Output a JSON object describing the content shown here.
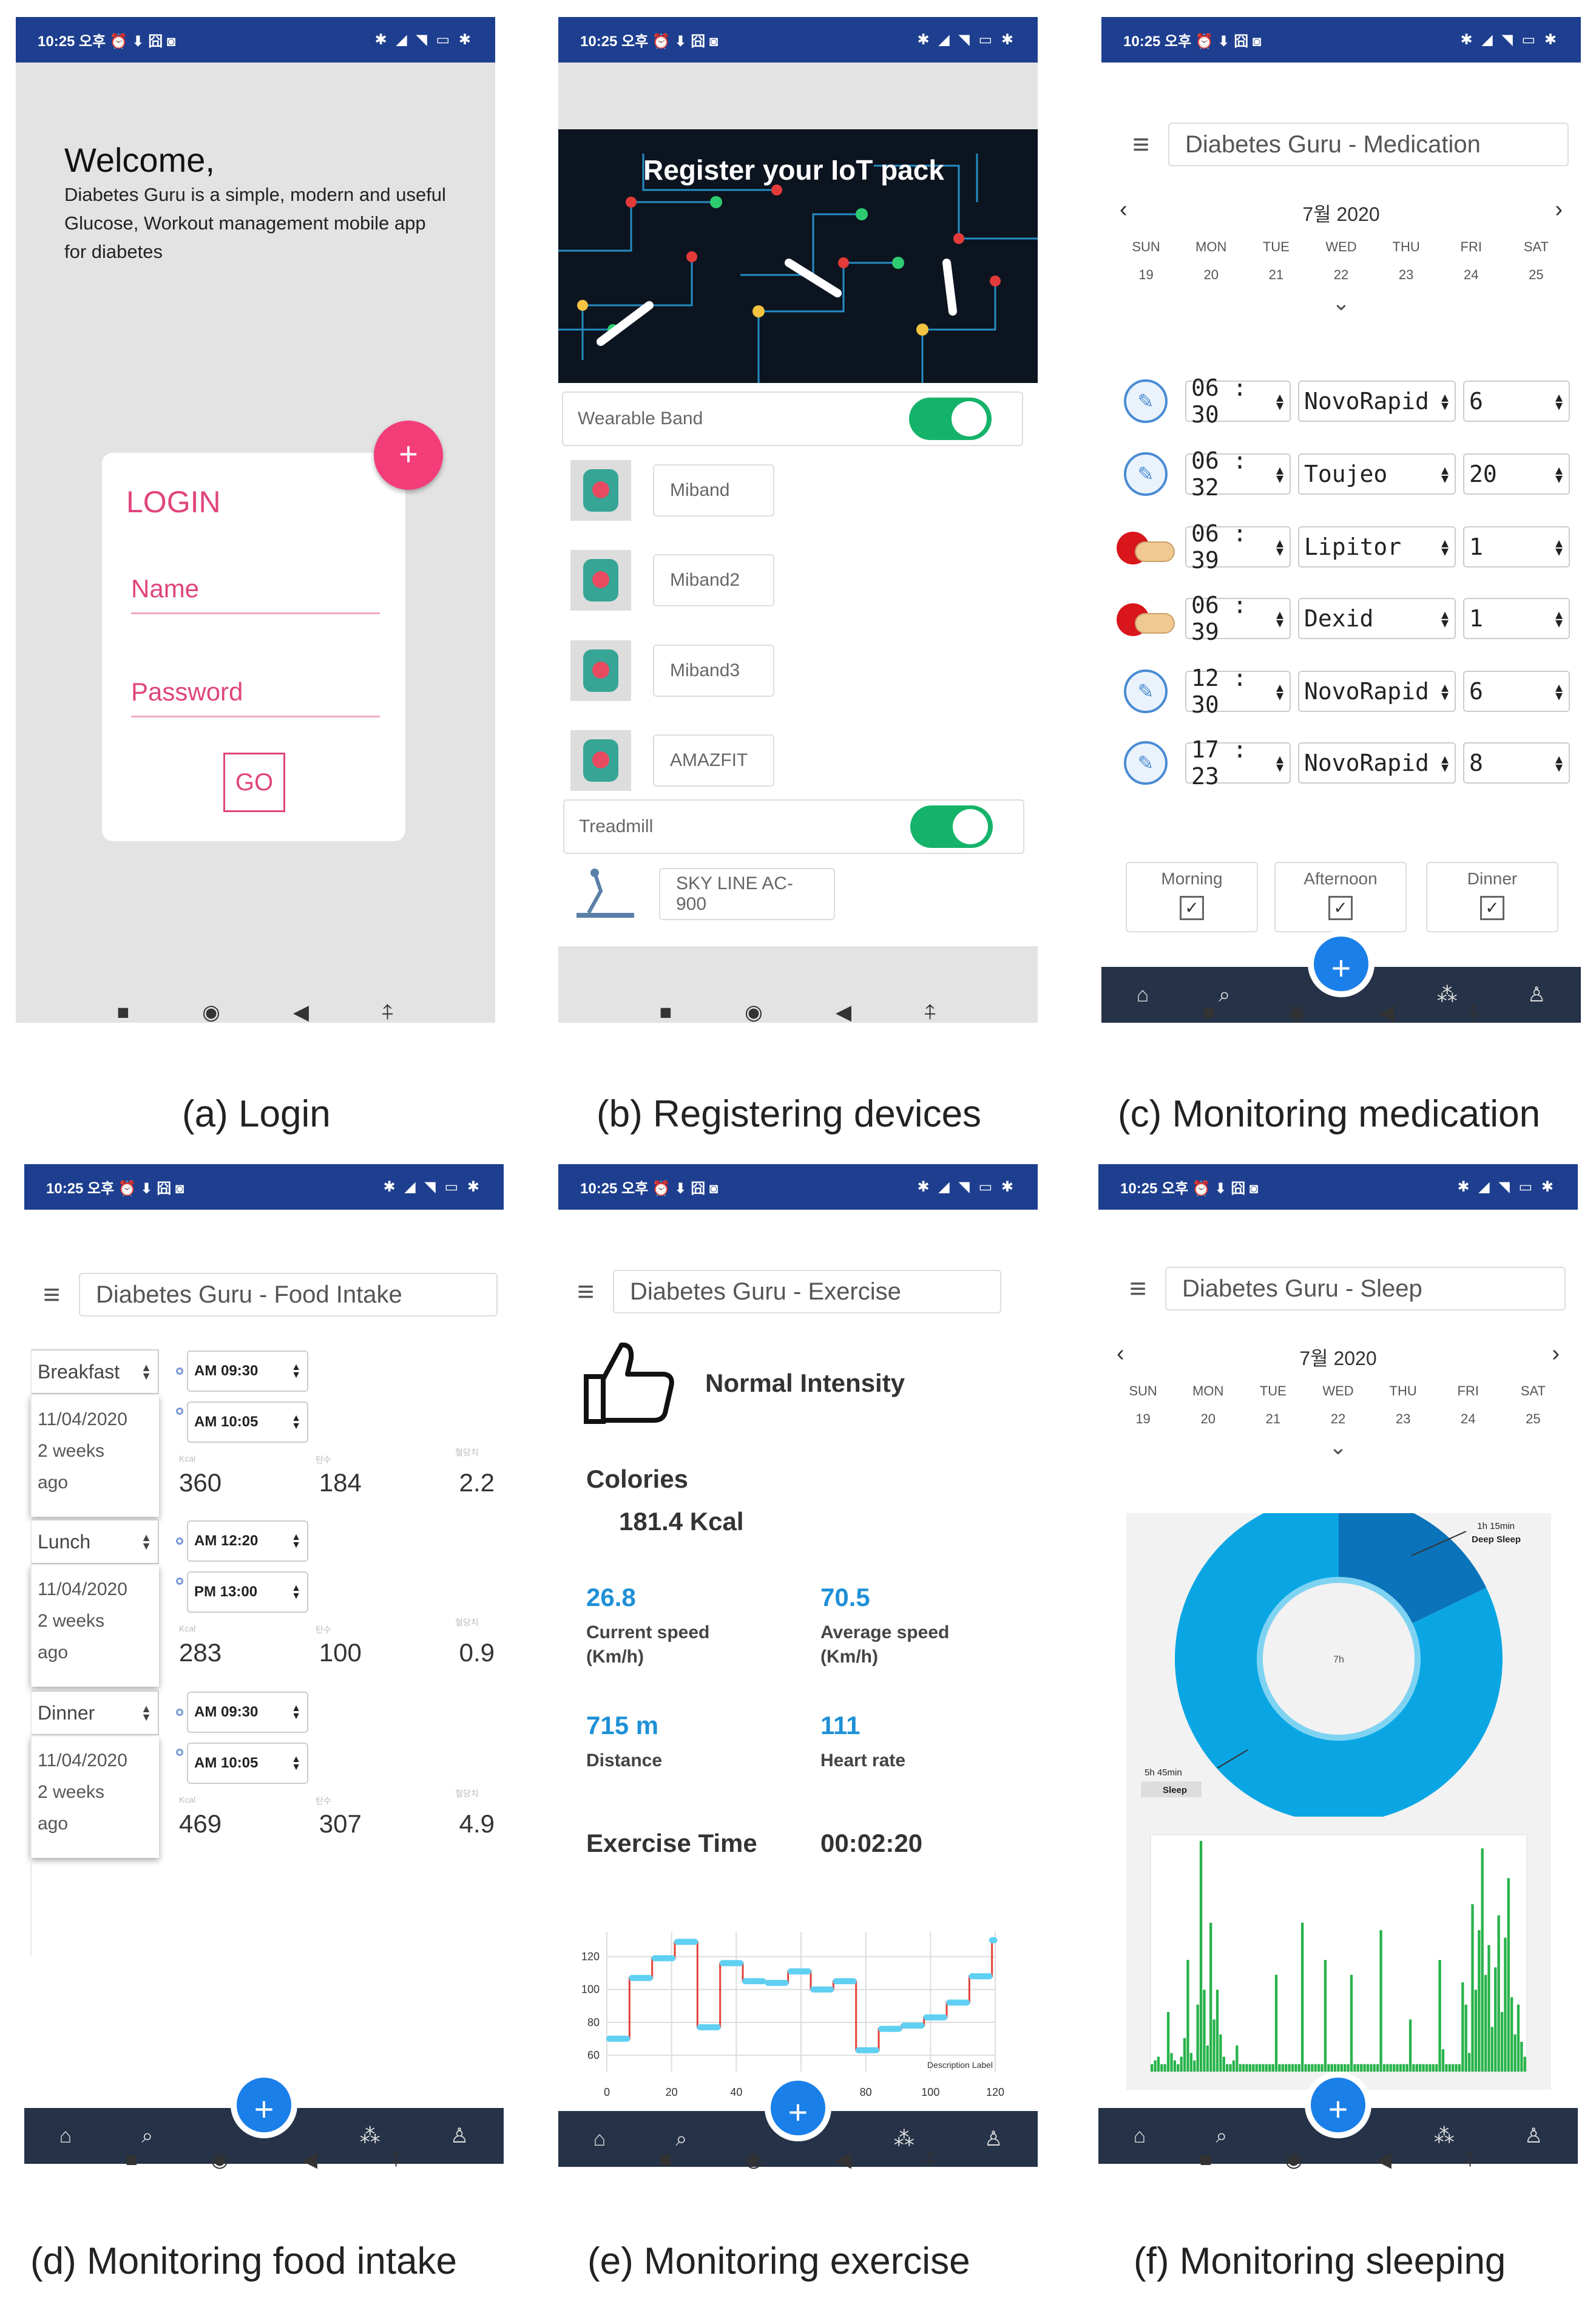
{
  "status": {
    "time": "10:25 오후 ⏰ ⬇ 囧 ◙",
    "right": "✱ ◢ ◥ ▭ ✱"
  },
  "nav": {
    "recent": "■",
    "home": "◉",
    "back": "◀",
    "assist": "⍏"
  },
  "bottom_nav": {
    "home": "⌂",
    "search": "⌕",
    "add": "+",
    "shuffle": "⁂",
    "profile": "♙"
  },
  "captions": {
    "a": "(a) Login",
    "b": "(b) Registering devices",
    "c": "(c) Monitoring medication",
    "d": "(d) Monitoring food intake",
    "e": "(e) Monitoring exercise",
    "f": "(f) Monitoring sleeping"
  },
  "login": {
    "welcome": "Welcome,",
    "desc1": "Diabetes Guru is a simple, modern and useful",
    "desc2": "Glucose, Workout management mobile app",
    "desc3": "for diabetes",
    "fab": "+",
    "card_title": "LOGIN",
    "name_label": "Name",
    "password_label": "Password",
    "go": "GO"
  },
  "devices": {
    "banner": "Register your IoT pack",
    "wearable_header": "Wearable Band",
    "bands": [
      "Miband",
      "Miband2",
      "Miband3",
      "AMAZFIT"
    ],
    "treadmill_header": "Treadmill",
    "treadmill": "SKY LINE AC-900"
  },
  "medication": {
    "title": "Diabetes Guru - Medication",
    "calendar": {
      "month": "7월 2020",
      "prev": "‹",
      "next": "›",
      "days": [
        "SUN",
        "MON",
        "TUE",
        "WED",
        "THU",
        "FRI",
        "SAT"
      ],
      "dates": [
        "19",
        "20",
        "21",
        "22",
        "23",
        "24",
        "25"
      ],
      "expand": "⌄"
    },
    "rows": [
      {
        "icon": "pen",
        "time": "06 : 30",
        "drug": "NovoRapid",
        "dose": "6"
      },
      {
        "icon": "pen",
        "time": "06 : 32",
        "drug": "Toujeo",
        "dose": "20"
      },
      {
        "icon": "pill",
        "time": "06 : 39",
        "drug": "Lipitor",
        "dose": "1"
      },
      {
        "icon": "pill",
        "time": "06 : 39",
        "drug": "Dexid",
        "dose": "1"
      },
      {
        "icon": "pen",
        "time": "12 : 30",
        "drug": "NovoRapid",
        "dose": "6"
      },
      {
        "icon": "pen",
        "time": "17 : 23",
        "drug": "NovoRapid",
        "dose": "8"
      }
    ],
    "checks": [
      {
        "label": "Morning",
        "checked": "✓"
      },
      {
        "label": "Afternoon",
        "checked": "✓"
      },
      {
        "label": "Dinner",
        "checked": "✓"
      }
    ]
  },
  "food": {
    "title": "Diabetes Guru - Food Intake",
    "col_small": [
      "Kcal",
      "탄수",
      "혈당치"
    ],
    "meals": [
      {
        "meal": "Breakfast",
        "date": "11/04/2020",
        "ago1": "2 weeks",
        "ago2": "ago",
        "t1": "AM 09:30",
        "t2": "AM 10:05",
        "kcal": "360",
        "b": "184",
        "c": "2.2"
      },
      {
        "meal": "Lunch",
        "date": "11/04/2020",
        "ago1": "2 weeks",
        "ago2": "ago",
        "t1": "AM 12:20",
        "t2": "PM 13:00",
        "kcal": "283",
        "b": "100",
        "c": "0.9"
      },
      {
        "meal": "Dinner",
        "date": "11/04/2020",
        "ago1": "2 weeks",
        "ago2": "ago",
        "t1": "AM 09:30",
        "t2": "AM 10:05",
        "kcal": "469",
        "b": "307",
        "c": "4.9"
      }
    ]
  },
  "exercise": {
    "title": "Diabetes Guru - Exercise",
    "intensity": "Normal Intensity",
    "calories_label": "Colories",
    "calories_value": "181.4 Kcal",
    "current_speed": "26.8",
    "current_speed_label1": "Current speed",
    "current_speed_label2": "(Km/h)",
    "average_speed": "70.5",
    "average_speed_label1": "Average speed",
    "average_speed_label2": "(Km/h)",
    "distance": "715 m",
    "distance_label": "Distance",
    "heart_rate": "111",
    "heart_rate_label": "Heart rate",
    "time_label": "Exercise Time",
    "time_value": "00:02:20",
    "chart_data": {
      "type": "line",
      "x": [
        0,
        7,
        14,
        21,
        28,
        35,
        42,
        49,
        56,
        63,
        70,
        77,
        84,
        91,
        98,
        105,
        112,
        119
      ],
      "values": [
        70,
        107,
        119,
        129,
        77,
        116,
        105,
        104,
        111,
        100,
        105,
        63,
        76,
        78,
        83,
        92,
        108,
        130
      ],
      "xticks": [
        "0",
        "20",
        "40",
        "60",
        "80",
        "100",
        "120"
      ],
      "yticks": [
        "60",
        "80",
        "100",
        "120"
      ],
      "xlim": [
        0,
        120
      ],
      "ylim": [
        50,
        135
      ],
      "legend": "Description Label",
      "grid": true,
      "colors": {
        "line": "#e0433a",
        "segment": "#5fd0f2"
      }
    }
  },
  "sleep": {
    "title": "Diabetes Guru - Sleep",
    "calendar": {
      "month": "7월 2020",
      "prev": "‹",
      "next": "›",
      "days": [
        "SUN",
        "MON",
        "TUE",
        "WED",
        "THU",
        "FRI",
        "SAT"
      ],
      "dates": [
        "19",
        "20",
        "21",
        "22",
        "23",
        "24",
        "25"
      ],
      "expand": "⌄"
    },
    "chart_data": [
      {
        "type": "pie",
        "categories": [
          "Deep Sleep",
          "Sleep"
        ],
        "values": [
          75,
          345
        ],
        "slice_labels": [
          "1h 15min",
          "5h 45min"
        ],
        "center": "7h",
        "colors": {
          "Deep Sleep": "#0a73b9",
          "Sleep": "#0aa6e4"
        }
      },
      {
        "type": "bar",
        "values": [
          2,
          3,
          4,
          2,
          2,
          16,
          5,
          3,
          2,
          4,
          9,
          30,
          5,
          3,
          18,
          62,
          22,
          7,
          40,
          14,
          22,
          10,
          4,
          2,
          2,
          3,
          7,
          2,
          2,
          2,
          2,
          2,
          2,
          2,
          2,
          2,
          2,
          2,
          26,
          2,
          2,
          2,
          2,
          2,
          2,
          2,
          40,
          2,
          2,
          2,
          2,
          2,
          2,
          30,
          2,
          2,
          2,
          2,
          2,
          2,
          2,
          26,
          2,
          2,
          2,
          2,
          2,
          2,
          2,
          2,
          38,
          2,
          2,
          2,
          2,
          2,
          2,
          2,
          2,
          14,
          2,
          2,
          2,
          2,
          2,
          2,
          2,
          2,
          30,
          6,
          2,
          2,
          2,
          2,
          2,
          24,
          18,
          5,
          45,
          22,
          38,
          60,
          26,
          34,
          12,
          28,
          42,
          16,
          36,
          52,
          20,
          10,
          18,
          8,
          4
        ],
        "color": "#27b24a"
      }
    ]
  }
}
